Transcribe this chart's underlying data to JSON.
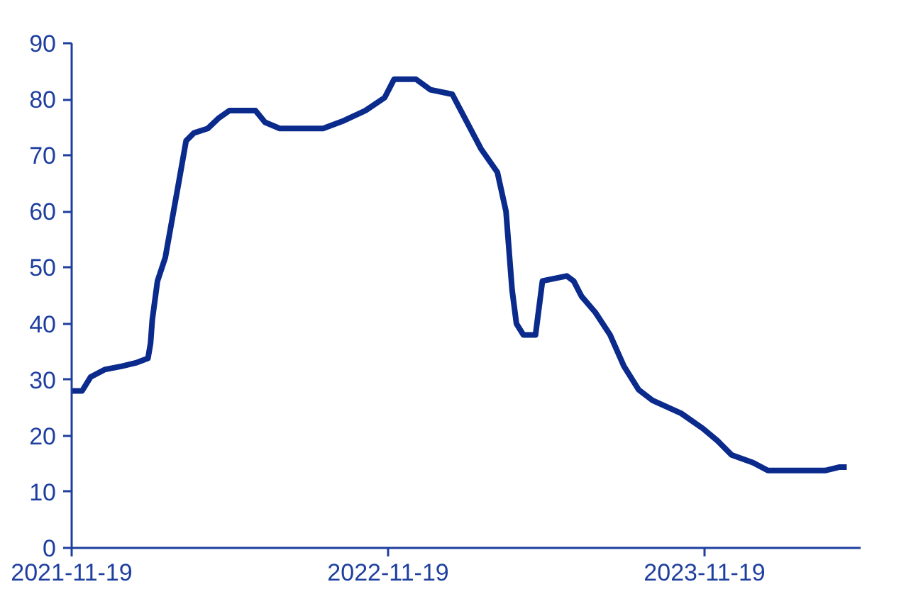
{
  "chart_data": {
    "type": "line",
    "x": [
      "2021-11-19",
      "2021-12-01",
      "2021-12-11",
      "2021-12-27",
      "2022-01-16",
      "2022-02-01",
      "2022-02-15",
      "2022-02-18",
      "2022-02-20",
      "2022-02-26",
      "2022-03-07",
      "2022-03-15",
      "2022-03-23",
      "2022-03-31",
      "2022-04-09",
      "2022-04-25",
      "2022-05-08",
      "2022-05-20",
      "2022-06-19",
      "2022-06-30",
      "2022-07-17",
      "2022-09-05",
      "2022-09-29",
      "2022-10-24",
      "2022-11-15",
      "2022-11-26",
      "2022-12-21",
      "2023-01-07",
      "2023-02-01",
      "2023-02-17",
      "2023-03-06",
      "2023-03-25",
      "2023-04-04",
      "2023-04-11",
      "2023-04-16",
      "2023-04-24",
      "2023-05-08",
      "2023-05-16",
      "2023-06-13",
      "2023-06-21",
      "2023-06-30",
      "2023-07-16",
      "2023-08-02",
      "2023-08-18",
      "2023-09-04",
      "2023-09-20",
      "2023-10-23",
      "2023-11-17",
      "2023-12-04",
      "2023-12-20",
      "2024-01-14",
      "2024-01-31",
      "2024-04-06",
      "2024-04-22",
      "2024-05-01"
    ],
    "series": [
      {
        "color": "#0a2a8c",
        "values": [
          28,
          28,
          30.5,
          31.8,
          32.4,
          33,
          33.8,
          36.5,
          40.7,
          47.6,
          51.8,
          58.7,
          65.6,
          72.6,
          74,
          74.8,
          76.7,
          78,
          78,
          75.9,
          74.8,
          74.8,
          76.2,
          78,
          80.3,
          83.6,
          83.6,
          81.7,
          80.9,
          76.2,
          71.2,
          67,
          60,
          46,
          40,
          38,
          38,
          47.6,
          48.5,
          47.6,
          44.9,
          42,
          38,
          32.4,
          28.2,
          26.3,
          24,
          21.3,
          19.1,
          16.6,
          15.2,
          13.8,
          13.8,
          14.4,
          14.4
        ]
      }
    ],
    "xlim": [
      "2021-11-19",
      "2024-05-17"
    ],
    "xticks": [
      "2021-11-19",
      "2022-11-19",
      "2023-11-19"
    ],
    "ylim": [
      0,
      90
    ],
    "yticks": [
      0,
      10,
      20,
      30,
      40,
      50,
      60,
      70,
      80,
      90
    ],
    "grid": false,
    "marker": "none",
    "line_style": "solid"
  }
}
